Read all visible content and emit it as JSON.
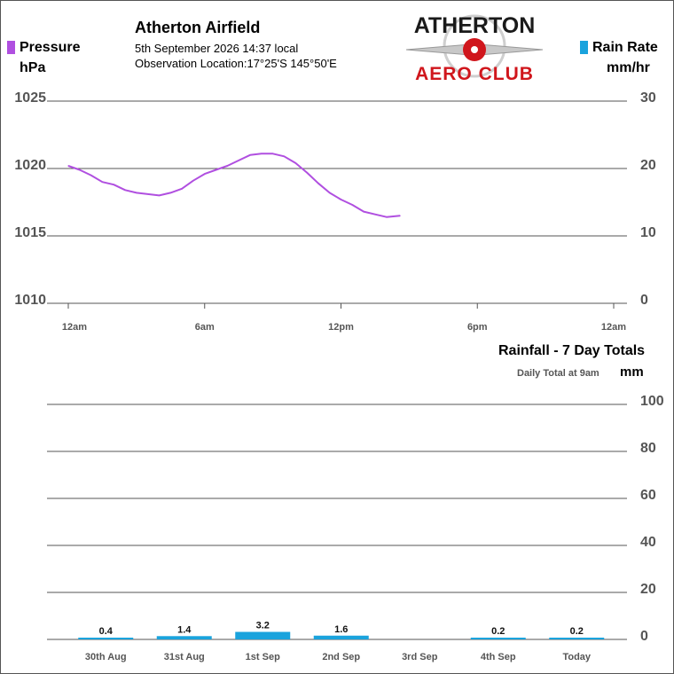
{
  "header": {
    "title": "Atherton Airfield",
    "datetime": "5th September 2026  14:37 local",
    "location": "Observation Location:17°25'S 145°50'E"
  },
  "logo": {
    "line1": "ATHERTON",
    "line2": "AERO CLUB"
  },
  "colors": {
    "pressure": "#b04fe0",
    "rain": "#1aa3dd",
    "grid": "#555555",
    "axis_text": "#555555"
  },
  "chart_data": [
    {
      "type": "line",
      "left_label": "Pressure",
      "left_unit": "hPa",
      "right_label": "Rain Rate",
      "right_unit": "mm/hr",
      "x_ticks": [
        "12am",
        "6am",
        "12pm",
        "6pm",
        "12am"
      ],
      "x_range_hours": [
        0,
        24
      ],
      "left_ticks": [
        "1025",
        "1020",
        "1015",
        "1010"
      ],
      "right_ticks": [
        "30",
        "20",
        "10",
        "0"
      ],
      "ylim_left": [
        1010,
        1025
      ],
      "ylim_right": [
        0,
        30
      ],
      "grid": true,
      "series": [
        {
          "name": "Pressure",
          "x": [
            0.0,
            0.5,
            1.0,
            1.5,
            2.0,
            2.5,
            3.0,
            3.5,
            4.0,
            4.5,
            5.0,
            5.5,
            6.0,
            6.5,
            7.0,
            7.5,
            8.0,
            8.5,
            9.0,
            9.5,
            10.0,
            10.5,
            11.0,
            11.5,
            12.0,
            12.5,
            13.0,
            13.5,
            14.0,
            14.6
          ],
          "y": [
            1020.2,
            1019.9,
            1019.5,
            1019.0,
            1018.8,
            1018.4,
            1018.2,
            1018.1,
            1018.0,
            1018.2,
            1018.5,
            1019.1,
            1019.6,
            1019.9,
            1020.2,
            1020.6,
            1021.0,
            1021.1,
            1021.1,
            1020.9,
            1020.4,
            1019.7,
            1018.9,
            1018.2,
            1017.7,
            1017.3,
            1016.8,
            1016.6,
            1016.4,
            1016.5
          ]
        }
      ]
    },
    {
      "type": "bar",
      "title": "Rainfall - 7 Day Totals",
      "subtitle": "Daily Total at 9am",
      "unit": "mm",
      "categories": [
        "30th Aug",
        "31st Aug",
        "1st Sep",
        "2nd Sep",
        "3rd Sep",
        "4th Sep",
        "Today"
      ],
      "values": [
        0.4,
        1.4,
        3.2,
        1.6,
        0,
        0.2,
        0.2
      ],
      "value_labels": [
        "0.4",
        "1.4",
        "3.2",
        "1.6",
        "",
        "0.2",
        "0.2"
      ],
      "y_ticks": [
        "100",
        "80",
        "60",
        "40",
        "20",
        "0"
      ],
      "ylim": [
        0,
        100
      ],
      "grid": true
    }
  ]
}
